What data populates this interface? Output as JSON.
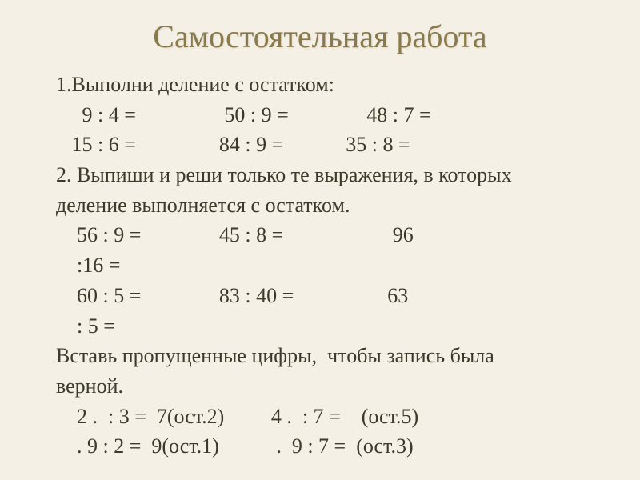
{
  "title": "Самостоятельная  работа",
  "task1": {
    "heading": "1.Выполни деление с остатком:",
    "row1": {
      "a": "9 : 4 =",
      "b": "50 : 9 =",
      "c": "48 : 7 ="
    },
    "row2": {
      "a": "15 : 6 =",
      "b": "84 : 9 =",
      "c": "35 : 8 ="
    }
  },
  "task2": {
    "heading_l1": "2. Выпиши и реши только те выражения, в которых",
    "heading_l2": "деление выполняется с остатком.",
    "row1": {
      "a": "56 : 9 =",
      "b": "45 : 8 =",
      "c": "96"
    },
    "row1_cont": ":16 =",
    "row2": {
      "a": "60 : 5 =",
      "b": "83 : 40 =",
      "c": "63"
    },
    "row2_cont": ": 5 ="
  },
  "task3": {
    "heading_l1": "Вставь пропущенные цифры,  чтобы запись была",
    "heading_l2": "верной.",
    "row1": {
      "a": "2 .  : 3 =  7(ост.2)",
      "b": "4 .  : 7 =    (ост.5)"
    },
    "row2": {
      "a": ". 9 : 2 =  9(ост.1)",
      "b": ".  9 : 7 =  (ост.3)"
    }
  },
  "colors": {
    "background": "#f4f0e6",
    "title": "#8a7a4a",
    "text": "#3c3a2a"
  },
  "fontsizes": {
    "title_pt": 30,
    "body_pt": 20
  }
}
